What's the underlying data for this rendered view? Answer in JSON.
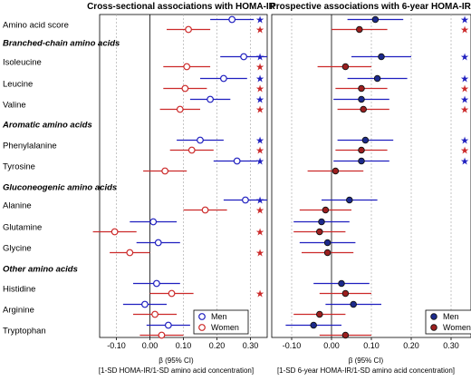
{
  "colors": {
    "men": "#1f1fbf",
    "women": "#cc2a2a",
    "grid": "#b8b8b8",
    "frame": "#000000"
  },
  "chart_data": [
    {
      "type": "forest",
      "title": "Cross-sectional associations with HOMA-IR",
      "xlabel_line1": "β (95% CI)",
      "xlabel_line2": "[1-SD HOMA-IR/1-SD amino acid concentration]",
      "xlim": [
        -0.15,
        0.35
      ],
      "xticks": [
        "-0.10",
        "0.00",
        "0.10",
        "0.20",
        "0.30"
      ],
      "xtick_values": [
        -0.1,
        0.0,
        0.1,
        0.2,
        0.3
      ],
      "legend": {
        "position": "bottom-right",
        "entries": [
          "Men",
          "Women"
        ]
      },
      "marker": "open",
      "rows": [
        {
          "label": "Amino acid score",
          "men": [
            0.245,
            0.18,
            0.31
          ],
          "women": [
            0.115,
            0.05,
            0.18
          ],
          "sig_men": true,
          "sig_women": true
        },
        {
          "label": "Isoleucine",
          "men": [
            0.28,
            0.21,
            0.35
          ],
          "women": [
            0.11,
            0.04,
            0.18
          ],
          "sig_men": true,
          "sig_women": true
        },
        {
          "label": "Leucine",
          "men": [
            0.22,
            0.15,
            0.29
          ],
          "women": [
            0.105,
            0.04,
            0.17
          ],
          "sig_men": true,
          "sig_women": true
        },
        {
          "label": "Valine",
          "men": [
            0.18,
            0.12,
            0.24
          ],
          "women": [
            0.09,
            0.03,
            0.15
          ],
          "sig_men": true,
          "sig_women": true
        },
        {
          "label": "Phenylalanine",
          "men": [
            0.15,
            0.08,
            0.22
          ],
          "women": [
            0.125,
            0.06,
            0.19
          ],
          "sig_men": true,
          "sig_women": true
        },
        {
          "label": "Tyrosine",
          "men": [
            0.26,
            0.19,
            0.32
          ],
          "women": [
            0.045,
            -0.02,
            0.11
          ],
          "sig_men": true,
          "sig_women": false
        },
        {
          "label": "Alanine",
          "men": [
            0.285,
            0.22,
            0.35
          ],
          "women": [
            0.165,
            0.1,
            0.23
          ],
          "sig_men": true,
          "sig_women": true
        },
        {
          "label": "Glutamine",
          "men": [
            0.01,
            -0.06,
            0.08
          ],
          "women": [
            -0.105,
            -0.17,
            -0.04
          ],
          "sig_men": false,
          "sig_women": true
        },
        {
          "label": "Glycine",
          "men": [
            0.025,
            -0.04,
            0.09
          ],
          "women": [
            -0.06,
            -0.12,
            0.0
          ],
          "sig_men": false,
          "sig_women": true
        },
        {
          "label": "Histidine",
          "men": [
            0.02,
            -0.05,
            0.09
          ],
          "women": [
            0.065,
            0.0,
            0.13
          ],
          "sig_men": false,
          "sig_women": true
        },
        {
          "label": "Arginine",
          "men": [
            -0.015,
            -0.08,
            0.05
          ],
          "women": [
            0.015,
            -0.05,
            0.08
          ],
          "sig_men": false,
          "sig_women": false
        },
        {
          "label": "Tryptophan",
          "men": [
            0.055,
            -0.01,
            0.12
          ],
          "women": [
            0.035,
            -0.03,
            0.1
          ],
          "sig_men": false,
          "sig_women": false
        }
      ]
    },
    {
      "type": "forest",
      "title": "Prospective associations with 6-year HOMA-IR",
      "xlabel_line1": "β (95% CI)",
      "xlabel_line2": "[1-SD 6-year HOMA-IR/1-SD amino acid concentration]",
      "xlim": [
        -0.15,
        0.35
      ],
      "xticks": [
        "-0.10",
        "0.00",
        "0.10",
        "0.20",
        "0.30"
      ],
      "xtick_values": [
        -0.1,
        0.0,
        0.1,
        0.2,
        0.3
      ],
      "legend": {
        "position": "bottom-right",
        "entries": [
          "Men",
          "Women"
        ]
      },
      "marker": "filled",
      "rows": [
        {
          "label": "Amino acid score",
          "men": [
            0.11,
            0.04,
            0.18
          ],
          "women": [
            0.07,
            0.0,
            0.14
          ],
          "sig_men": true,
          "sig_women": true
        },
        {
          "label": "Isoleucine",
          "men": [
            0.125,
            0.05,
            0.2
          ],
          "women": [
            0.035,
            -0.035,
            0.1
          ],
          "sig_men": true,
          "sig_women": false
        },
        {
          "label": "Leucine",
          "men": [
            0.115,
            0.04,
            0.19
          ],
          "women": [
            0.075,
            0.01,
            0.14
          ],
          "sig_men": true,
          "sig_women": true
        },
        {
          "label": "Valine",
          "men": [
            0.075,
            0.005,
            0.145
          ],
          "women": [
            0.08,
            0.015,
            0.145
          ],
          "sig_men": true,
          "sig_women": true
        },
        {
          "label": "Phenylalanine",
          "men": [
            0.085,
            0.015,
            0.155
          ],
          "women": [
            0.075,
            0.01,
            0.14
          ],
          "sig_men": true,
          "sig_women": true
        },
        {
          "label": "Tyrosine",
          "men": [
            0.075,
            0.005,
            0.145
          ],
          "women": [
            0.01,
            -0.06,
            0.08
          ],
          "sig_men": true,
          "sig_women": false
        },
        {
          "label": "Alanine",
          "men": [
            0.045,
            -0.025,
            0.115
          ],
          "women": [
            -0.015,
            -0.08,
            0.05
          ],
          "sig_men": false,
          "sig_women": false
        },
        {
          "label": "Glutamine",
          "men": [
            -0.025,
            -0.095,
            0.045
          ],
          "women": [
            -0.03,
            -0.095,
            0.035
          ],
          "sig_men": false,
          "sig_women": false
        },
        {
          "label": "Glycine",
          "men": [
            -0.01,
            -0.08,
            0.06
          ],
          "women": [
            -0.01,
            -0.075,
            0.055
          ],
          "sig_men": false,
          "sig_women": false
        },
        {
          "label": "Histidine",
          "men": [
            0.025,
            -0.045,
            0.095
          ],
          "women": [
            0.035,
            -0.03,
            0.1
          ],
          "sig_men": false,
          "sig_women": false
        },
        {
          "label": "Arginine",
          "men": [
            0.055,
            -0.015,
            0.125
          ],
          "women": [
            -0.03,
            -0.095,
            0.035
          ],
          "sig_men": false,
          "sig_women": false
        },
        {
          "label": "Tryptophan",
          "men": [
            -0.045,
            -0.115,
            0.025
          ],
          "women": [
            0.035,
            -0.03,
            0.1
          ],
          "sig_men": false,
          "sig_women": false
        }
      ]
    }
  ],
  "groups": [
    "Branched-chain amino acids",
    "Aromatic amino acids",
    "Gluconeogenic amino acids",
    "Other amino acids"
  ],
  "sig_symbol": "★"
}
